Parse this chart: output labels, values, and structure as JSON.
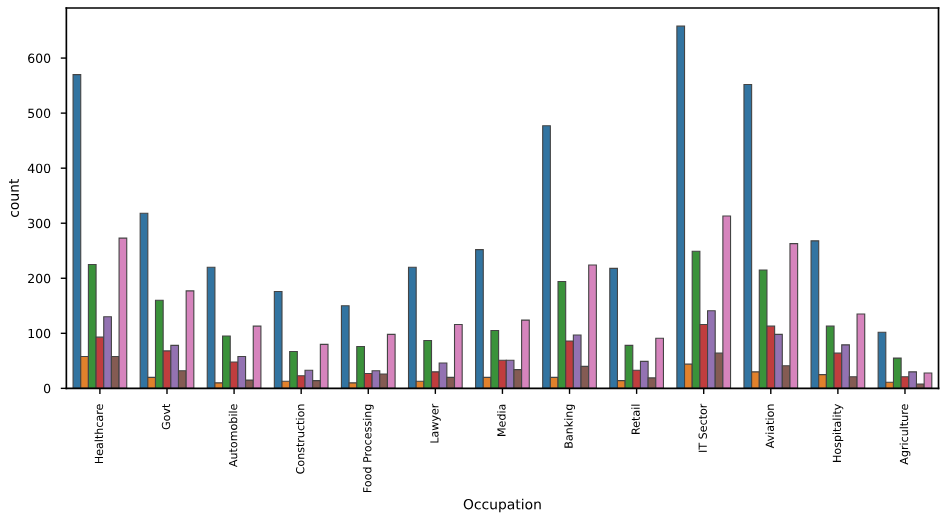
{
  "chart_data": {
    "type": "bar",
    "xlabel": "Occupation",
    "ylabel": "count",
    "categories": [
      "Healthcare",
      "Govt",
      "Automobile",
      "Construction",
      "Food Processing",
      "Lawyer",
      "Media",
      "Banking",
      "Retail",
      "IT Sector",
      "Aviation",
      "Hospitality",
      "Agriculture"
    ],
    "series": [
      {
        "color": "#3274a1",
        "values": [
          570,
          318,
          220,
          176,
          150,
          220,
          252,
          477,
          218,
          658,
          552,
          268,
          102
        ]
      },
      {
        "color": "#e1812c",
        "values": [
          58,
          20,
          10,
          13,
          10,
          13,
          20,
          20,
          14,
          44,
          30,
          25,
          11
        ]
      },
      {
        "color": "#3a923a",
        "values": [
          225,
          160,
          95,
          67,
          76,
          87,
          105,
          194,
          78,
          249,
          215,
          113,
          55
        ]
      },
      {
        "color": "#c03d3e",
        "values": [
          93,
          68,
          48,
          23,
          27,
          30,
          51,
          86,
          33,
          116,
          113,
          64,
          21
        ]
      },
      {
        "color": "#9372b2",
        "values": [
          130,
          78,
          58,
          33,
          32,
          46,
          51,
          97,
          49,
          141,
          98,
          79,
          30
        ]
      },
      {
        "color": "#845b53",
        "values": [
          58,
          32,
          15,
          14,
          26,
          20,
          34,
          40,
          19,
          64,
          41,
          21,
          8
        ]
      },
      {
        "color": "#d684bd",
        "values": [
          273,
          177,
          113,
          80,
          98,
          116,
          124,
          224,
          91,
          313,
          263,
          135,
          28
        ]
      }
    ],
    "ylim": [
      0,
      691
    ],
    "yticks": [
      0,
      100,
      200,
      300,
      400,
      500,
      600
    ],
    "grid": false,
    "legend": false
  }
}
